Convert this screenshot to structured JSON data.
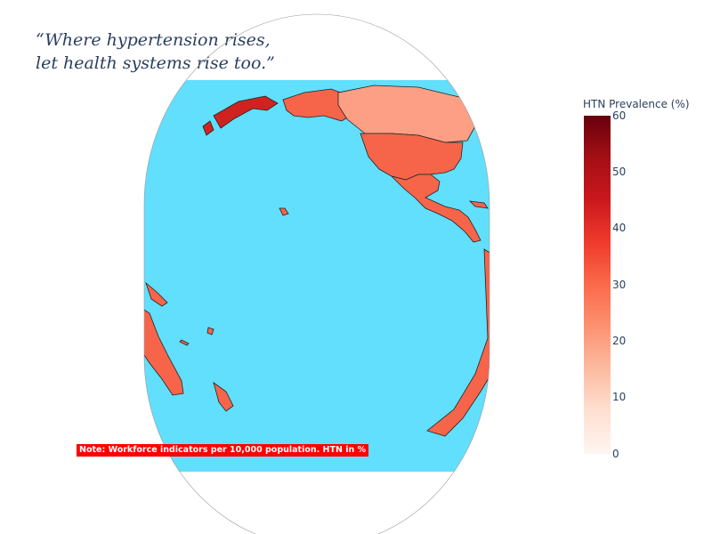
{
  "title": {
    "line1": "“Where hypertension rises,",
    "line2": "let health systems rise too.”"
  },
  "note": "Note: Workforce indicators per 10,000 population. HTN in %",
  "colorbar": {
    "title": "HTN Prevalence (%)",
    "ticks": [
      "60",
      "50",
      "40",
      "30",
      "20",
      "10",
      "0"
    ],
    "range": [
      0,
      60
    ],
    "colorscale": "Reds"
  },
  "map": {
    "projection": "orthographic",
    "center": "Pacific Ocean",
    "ocean_color": "#61dffc",
    "land_colors": {
      "north_america": "#f6654a",
      "canada_northwest": "#fc9f84",
      "russia_east": "#d0231f",
      "south_america": "#f6654a",
      "australia": "#f6654a",
      "new_zealand": "#f6654a"
    }
  }
}
